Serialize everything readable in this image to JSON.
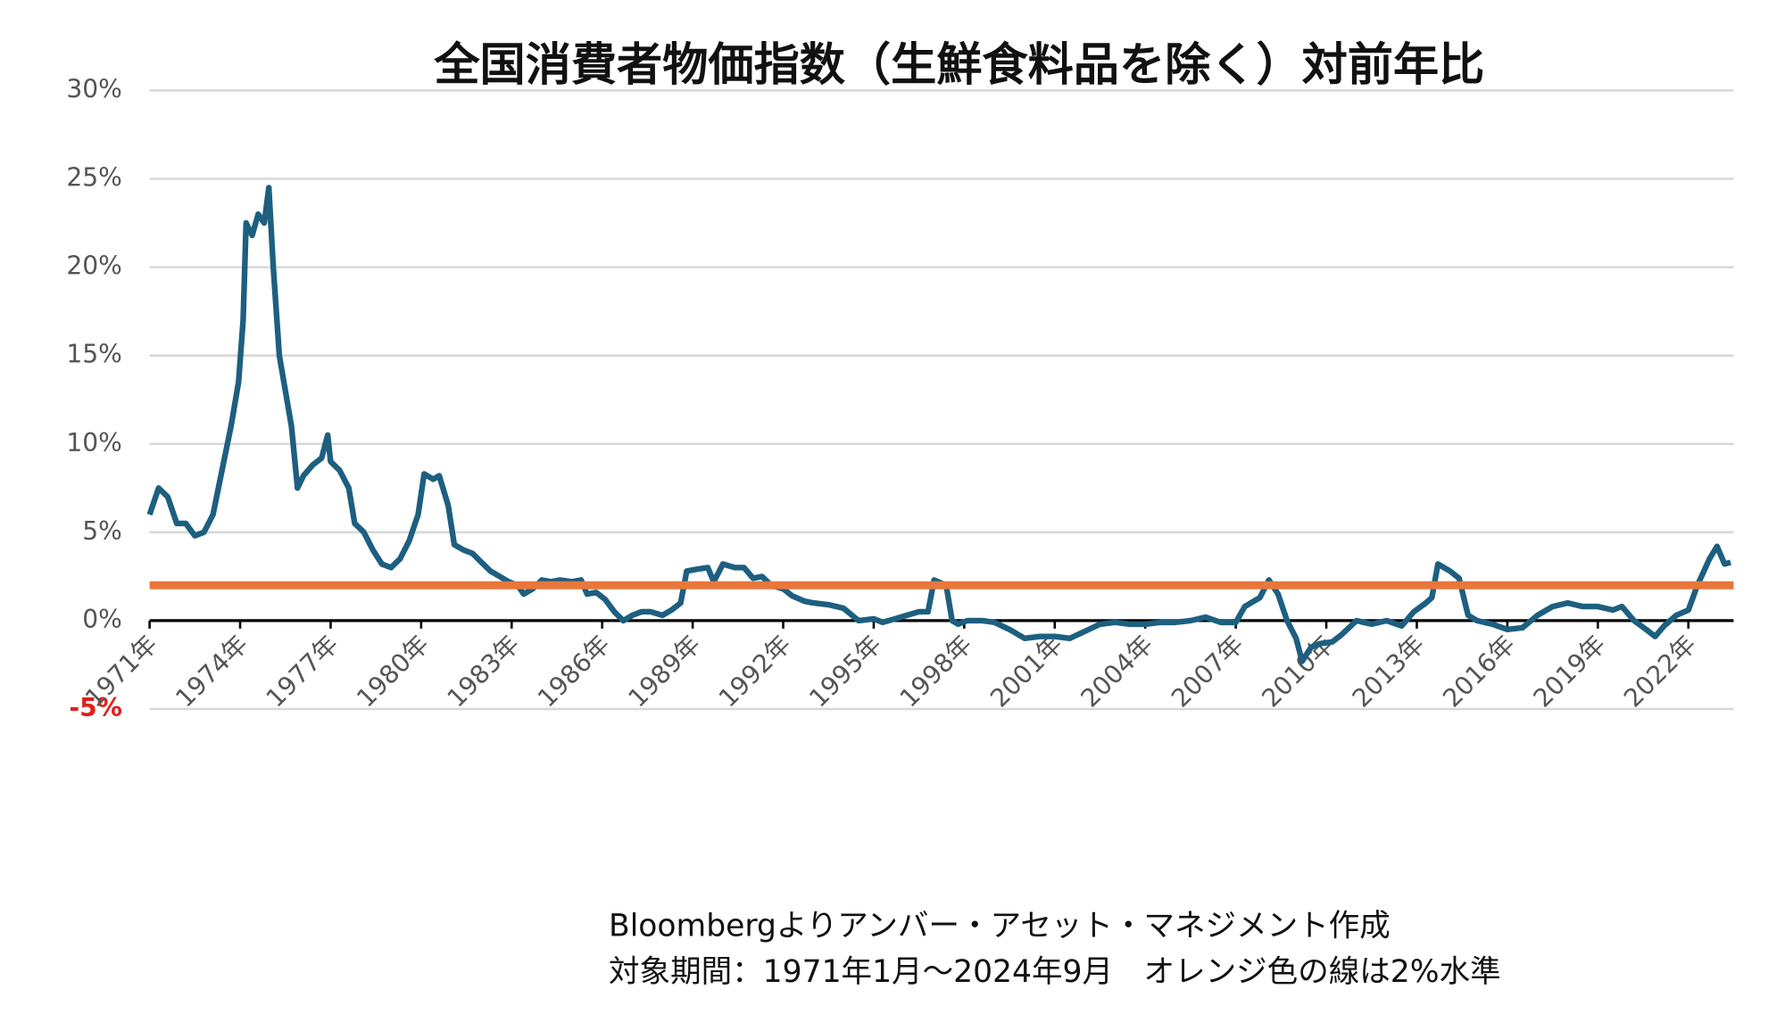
{
  "chart_data": {
    "type": "line",
    "title": "全国消費者物価指数（生鮮食料品を除く）対前年比",
    "notes": [
      "Bloombergよりアンバー・アセット・マネジメント作成",
      "対象期間：1971年1月～2024年9月　オレンジ色の線は2%水準"
    ],
    "x": [
      1971.0,
      1971.3,
      1971.6,
      1971.9,
      1972.2,
      1972.5,
      1972.8,
      1973.1,
      1973.4,
      1973.7,
      1973.95,
      1974.1,
      1974.2,
      1974.4,
      1974.6,
      1974.8,
      1974.95,
      1975.1,
      1975.3,
      1975.5,
      1975.7,
      1975.9,
      1976.1,
      1976.4,
      1976.7,
      1976.9,
      1977.0,
      1977.3,
      1977.6,
      1977.8,
      1978.1,
      1978.4,
      1978.7,
      1979.0,
      1979.3,
      1979.6,
      1979.9,
      1980.1,
      1980.4,
      1980.6,
      1980.9,
      1981.1,
      1981.4,
      1981.7,
      1982.0,
      1982.3,
      1982.6,
      1982.9,
      1983.2,
      1983.4,
      1983.7,
      1984.0,
      1984.3,
      1984.6,
      1985.0,
      1985.3,
      1985.5,
      1985.8,
      1986.1,
      1986.4,
      1986.7,
      1987.0,
      1987.3,
      1987.6,
      1988.0,
      1988.3,
      1988.6,
      1988.8,
      1989.1,
      1989.5,
      1989.7,
      1990.0,
      1990.4,
      1990.7,
      1991.0,
      1991.3,
      1991.6,
      1992.0,
      1992.3,
      1992.7,
      1993.0,
      1993.5,
      1994.0,
      1994.5,
      1995.0,
      1995.3,
      1995.7,
      1996.1,
      1996.5,
      1996.8,
      1997.0,
      1997.4,
      1997.6,
      1997.8,
      1998.1,
      1998.6,
      1999.0,
      1999.5,
      2000.0,
      2000.5,
      2001.0,
      2001.5,
      2002.0,
      2002.5,
      2003.0,
      2003.5,
      2004.0,
      2004.5,
      2005.0,
      2005.5,
      2006.0,
      2006.5,
      2007.0,
      2007.3,
      2007.8,
      2008.1,
      2008.4,
      2008.7,
      2009.0,
      2009.2,
      2009.5,
      2009.8,
      2010.2,
      2010.5,
      2011.0,
      2011.5,
      2012.0,
      2012.5,
      2012.9,
      2013.3,
      2013.5,
      2013.7,
      2014.1,
      2014.4,
      2014.7,
      2015.0,
      2015.5,
      2016.0,
      2016.5,
      2017.0,
      2017.5,
      2018.0,
      2018.5,
      2019.0,
      2019.5,
      2019.8,
      2020.2,
      2020.6,
      2020.9,
      2021.2,
      2021.6,
      2022.0,
      2022.3,
      2022.7,
      2022.95,
      2023.2,
      2023.4
    ],
    "series": [
      {
        "name": "全国消費者物価指数（生鮮食料品を除く）対前年比",
        "color": "#1d5f80",
        "values": [
          6.0,
          7.5,
          7.0,
          5.5,
          5.5,
          4.8,
          5.0,
          6.0,
          8.5,
          11.0,
          13.5,
          17,
          22.5,
          21.8,
          23,
          22.5,
          24.5,
          20,
          15,
          13,
          11,
          7.5,
          8.2,
          8.8,
          9.2,
          10.5,
          9,
          8.5,
          7.5,
          5.5,
          5,
          4,
          3.2,
          3.0,
          3.5,
          4.5,
          6,
          8.3,
          8,
          8.2,
          6.5,
          4.3,
          4.0,
          3.8,
          3.3,
          2.8,
          2.5,
          2.2,
          2.0,
          1.5,
          1.8,
          2.3,
          2.2,
          2.3,
          2.2,
          2.3,
          1.5,
          1.6,
          1.2,
          0.5,
          0.0,
          0.3,
          0.5,
          0.5,
          0.3,
          0.6,
          1.0,
          2.8,
          2.9,
          3.0,
          2.2,
          3.2,
          3.0,
          3.0,
          2.4,
          2.5,
          2.0,
          1.8,
          1.4,
          1.1,
          1.0,
          0.9,
          0.7,
          0.0,
          0.1,
          -0.1,
          0.1,
          0.3,
          0.5,
          0.5,
          2.3,
          2.0,
          0.0,
          -0.2,
          0.0,
          0.0,
          -0.1,
          -0.5,
          -1.0,
          -0.9,
          -0.9,
          -1.0,
          -0.6,
          -0.2,
          -0.1,
          -0.2,
          -0.2,
          -0.1,
          -0.1,
          0.0,
          0.2,
          -0.1,
          -0.1,
          0.8,
          1.3,
          2.3,
          1.5,
          0.0,
          -1.0,
          -2.3,
          -1.5,
          -1.3,
          -1.2,
          -0.8,
          0.0,
          -0.2,
          0.0,
          -0.3,
          0.5,
          1.0,
          1.3,
          3.2,
          2.8,
          2.4,
          0.3,
          0.0,
          -0.2,
          -0.5,
          -0.4,
          0.3,
          0.8,
          1.0,
          0.8,
          0.8,
          0.6,
          0.8,
          0.0,
          -0.5,
          -0.9,
          -0.3,
          0.3,
          0.6,
          2.0,
          3.5,
          4.2,
          3.2,
          3.3
        ]
      }
    ],
    "reference_line": {
      "value": 2,
      "color": "#e8773a"
    },
    "xlim": [
      1971,
      2023.5
    ],
    "xticks": [
      {
        "value": 1971,
        "label": "1971年"
      },
      {
        "value": 1974,
        "label": "1974年"
      },
      {
        "value": 1977,
        "label": "1977年"
      },
      {
        "value": 1980,
        "label": "1980年"
      },
      {
        "value": 1983,
        "label": "1983年"
      },
      {
        "value": 1986,
        "label": "1986年"
      },
      {
        "value": 1989,
        "label": "1989年"
      },
      {
        "value": 1992,
        "label": "1992年"
      },
      {
        "value": 1995,
        "label": "1995年"
      },
      {
        "value": 1998,
        "label": "1998年"
      },
      {
        "value": 2001,
        "label": "2001年"
      },
      {
        "value": 2004,
        "label": "2004年"
      },
      {
        "value": 2007,
        "label": "2007年"
      },
      {
        "value": 2010,
        "label": "2010年"
      },
      {
        "value": 2013,
        "label": "2013年"
      },
      {
        "value": 2016,
        "label": "2016年"
      },
      {
        "value": 2019,
        "label": "2019年"
      },
      {
        "value": 2022,
        "label": "2022年"
      }
    ],
    "ylim": [
      -5,
      30
    ],
    "yticks": [
      {
        "value": -5,
        "label": "-5%"
      },
      {
        "value": 0,
        "label": "0%"
      },
      {
        "value": 5,
        "label": "5%"
      },
      {
        "value": 10,
        "label": "10%"
      },
      {
        "value": 15,
        "label": "15%"
      },
      {
        "value": 20,
        "label": "20%"
      },
      {
        "value": 25,
        "label": "25%"
      },
      {
        "value": 30,
        "label": "30%"
      }
    ],
    "grid": true
  }
}
